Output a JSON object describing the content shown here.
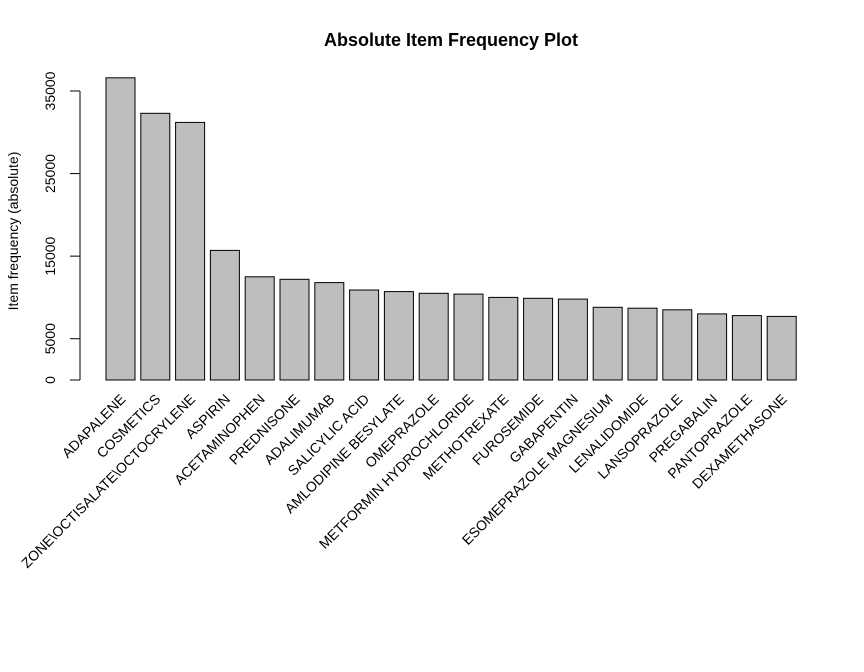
{
  "chart_data": {
    "type": "bar",
    "title": "Absolute Item Frequency Plot",
    "xlabel": "",
    "ylabel": "Item frequency (absolute)",
    "categories": [
      "ADAPALENE",
      "COSMETICS",
      "ZONE\\OCTISALATE\\OCTOCRYLENE",
      "ASPIRIN",
      "ACETAMINOPHEN",
      "PREDNISONE",
      "ADALIMUMAB",
      "SALICYLIC ACID",
      "AMLODIPINE BESYLATE",
      "OMEPRAZOLE",
      "METFORMIN HYDROCHLORIDE",
      "METHOTREXATE",
      "FUROSEMIDE",
      "GABAPENTIN",
      "ESOMEPRAZOLE MAGNESIUM",
      "LENALIDOMIDE",
      "LANSOPRAZOLE",
      "PREGABALIN",
      "PANTOPRAZOLE",
      "DEXAMETHASONE"
    ],
    "values": [
      36600,
      32300,
      31200,
      15700,
      12500,
      12200,
      11800,
      10900,
      10700,
      10500,
      10400,
      10000,
      9900,
      9800,
      8800,
      8700,
      8500,
      8000,
      7800,
      7700
    ],
    "yticks": [
      0,
      5000,
      15000,
      25000,
      35000
    ],
    "ylim": [
      0,
      36600
    ],
    "grid": false,
    "legend": "none",
    "bar_color": "#bebebe",
    "bar_stroke": "#000000"
  }
}
